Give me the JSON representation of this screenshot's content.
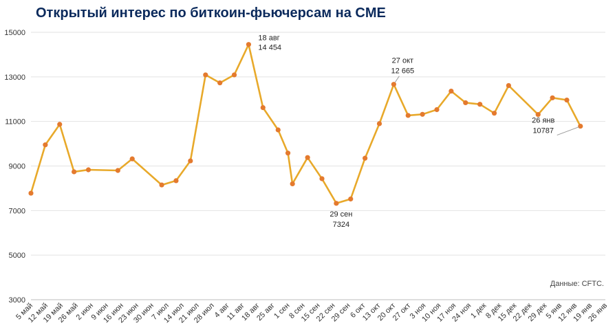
{
  "chart_data": {
    "type": "line",
    "title": "Открытый интерес по биткоин-фьючерсам на CME",
    "source": "Данные: CFTC.",
    "ylim": [
      3000,
      15000
    ],
    "yticks": [
      "15000",
      "13000",
      "11000",
      "9000",
      "7000",
      "5000",
      "3000"
    ],
    "grid": true,
    "line_color": "#e8a92a",
    "marker_color": "#e47a2e",
    "x": [
      "5 май",
      "12 май",
      "19 май",
      "26 май",
      "2 июн",
      "9 июн",
      "16 июн",
      "23 июн",
      "30 июн",
      "7 июл",
      "14 июл",
      "21 июл",
      "28 июл",
      "4 авг",
      "11 авг",
      "18 авг",
      "25 авг",
      "1 сен",
      "8 сен",
      "15 сен",
      "22 сен",
      "29 сен",
      "6 окт",
      "13 окт",
      "20 окт",
      "27 окт",
      "3 ноя",
      "10 ноя",
      "17 ноя",
      "24 ноя",
      "1 дек",
      "8 дек",
      "15 дек",
      "22 дек",
      "29 дек",
      "5 янв",
      "12 янв",
      "19 янв",
      "26 янв"
    ],
    "points": [
      {
        "x": 0,
        "y": 7780
      },
      {
        "x": 0.95,
        "y": 9950
      },
      {
        "x": 1.9,
        "y": 10870
      },
      {
        "x": 2.85,
        "y": 8740
      },
      {
        "x": 3.8,
        "y": 8830
      },
      {
        "x": 5.75,
        "y": 8800
      },
      {
        "x": 6.7,
        "y": 9320
      },
      {
        "x": 8.65,
        "y": 8150
      },
      {
        "x": 9.6,
        "y": 8340
      },
      {
        "x": 10.55,
        "y": 9230
      },
      {
        "x": 11.55,
        "y": 13090
      },
      {
        "x": 12.5,
        "y": 12730
      },
      {
        "x": 13.45,
        "y": 13090
      },
      {
        "x": 14.4,
        "y": 14454
      },
      {
        "x": 15.35,
        "y": 11620
      },
      {
        "x": 16.35,
        "y": 10620
      },
      {
        "x": 17.0,
        "y": 9580
      },
      {
        "x": 17.3,
        "y": 8200
      },
      {
        "x": 18.3,
        "y": 9380
      },
      {
        "x": 19.25,
        "y": 8430
      },
      {
        "x": 20.2,
        "y": 7324
      },
      {
        "x": 21.15,
        "y": 7520
      },
      {
        "x": 22.1,
        "y": 9350
      },
      {
        "x": 23.05,
        "y": 10900
      },
      {
        "x": 24.0,
        "y": 12665
      },
      {
        "x": 24.95,
        "y": 11270
      },
      {
        "x": 25.9,
        "y": 11320
      },
      {
        "x": 26.85,
        "y": 11530
      },
      {
        "x": 27.8,
        "y": 12360
      },
      {
        "x": 28.75,
        "y": 11840
      },
      {
        "x": 29.7,
        "y": 11770
      },
      {
        "x": 30.65,
        "y": 11370
      },
      {
        "x": 31.6,
        "y": 12610
      },
      {
        "x": 33.55,
        "y": 11310
      },
      {
        "x": 34.5,
        "y": 12060
      },
      {
        "x": 35.45,
        "y": 11960
      },
      {
        "x": 36.35,
        "y": 10787
      }
    ],
    "annotations": [
      {
        "point": 13,
        "line1": "18 авг",
        "line2": "14 454",
        "position": "right"
      },
      {
        "point": 20,
        "line1": "29 сен",
        "line2": "7324",
        "position": "below"
      },
      {
        "point": 24,
        "line1": "27 окт",
        "line2": "12 665",
        "position": "above"
      },
      {
        "point": 36,
        "line1": "26 янв",
        "line2": "10787",
        "position": "left"
      }
    ]
  }
}
